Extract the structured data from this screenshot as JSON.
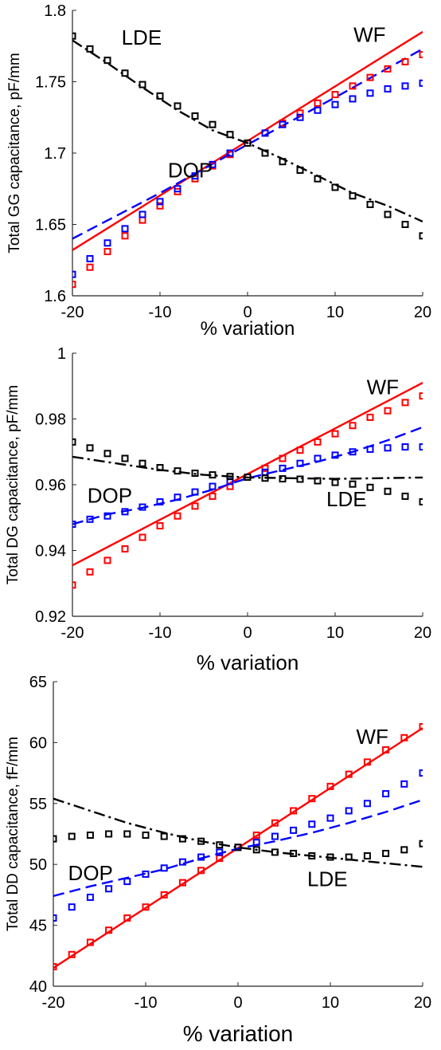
{
  "colors": {
    "WF": "#ff0000",
    "DOP": "#0000ff",
    "LDE": "#000000"
  },
  "chart_data": [
    {
      "type": "line",
      "ylabel": "Total GG capacitance, pF/mm",
      "xlabel": "% variation",
      "xlim": [
        -20,
        20
      ],
      "ylim": [
        1.6,
        1.8
      ],
      "xticks": [
        -20,
        -10,
        0,
        10,
        20
      ],
      "xtick_labels": [
        "-20",
        "-10",
        "0",
        "10",
        "20"
      ],
      "yticks": [
        1.6,
        1.65,
        1.7,
        1.75,
        1.8
      ],
      "ytick_labels": [
        "1.6",
        "1.65",
        "1.7",
        "1.75",
        "1.8"
      ],
      "grid": false,
      "annotations": [
        {
          "text": "LDE",
          "x": -14.4,
          "y": 1.776
        },
        {
          "text": "WF",
          "x": 12.1,
          "y": 1.778
        },
        {
          "text": "DOP",
          "x": -9.1,
          "y": 1.683
        }
      ],
      "series": [
        {
          "key": "WF",
          "style": "solid",
          "x": [
            -20,
            20
          ],
          "y": [
            1.632,
            1.785
          ]
        },
        {
          "key": "DOP",
          "style": "dashed",
          "x": [
            -20,
            -10,
            0,
            10,
            20
          ],
          "y": [
            1.64,
            1.672,
            1.706,
            1.739,
            1.773
          ]
        },
        {
          "key": "LDE",
          "style": "dashdot",
          "x": [
            -20,
            -16,
            -12,
            -8,
            -4,
            0,
            4,
            8,
            12,
            16,
            20
          ],
          "y": [
            1.779,
            1.763,
            1.746,
            1.73,
            1.716,
            1.707,
            1.696,
            1.684,
            1.672,
            1.663,
            1.652
          ]
        },
        {
          "key": "WF",
          "style": "markers",
          "x": [
            -20,
            -18,
            -16,
            -14,
            -12,
            -10,
            -8,
            -6,
            -4,
            -2,
            0,
            2,
            4,
            6,
            8,
            10,
            12,
            14,
            16,
            18,
            20
          ],
          "y": [
            1.608,
            1.62,
            1.631,
            1.642,
            1.653,
            1.663,
            1.673,
            1.682,
            1.691,
            1.699,
            1.707,
            1.714,
            1.721,
            1.728,
            1.735,
            1.741,
            1.747,
            1.753,
            1.759,
            1.764,
            1.769
          ]
        },
        {
          "key": "DOP",
          "style": "markers",
          "x": [
            -20,
            -18,
            -16,
            -14,
            -12,
            -10,
            -8,
            -6,
            -4,
            -2,
            0,
            2,
            4,
            6,
            8,
            10,
            12,
            14,
            16,
            18,
            20
          ],
          "y": [
            1.615,
            1.626,
            1.637,
            1.647,
            1.657,
            1.666,
            1.675,
            1.684,
            1.692,
            1.7,
            1.707,
            1.714,
            1.72,
            1.725,
            1.73,
            1.734,
            1.738,
            1.742,
            1.745,
            1.747,
            1.749
          ]
        },
        {
          "key": "LDE",
          "style": "markers",
          "x": [
            -20,
            -18,
            -16,
            -14,
            -12,
            -10,
            -8,
            -6,
            -4,
            -2,
            0,
            2,
            4,
            6,
            8,
            10,
            12,
            14,
            16,
            18,
            20
          ],
          "y": [
            1.782,
            1.773,
            1.765,
            1.756,
            1.748,
            1.74,
            1.733,
            1.726,
            1.72,
            1.713,
            1.707,
            1.7,
            1.694,
            1.688,
            1.682,
            1.676,
            1.67,
            1.664,
            1.657,
            1.65,
            1.642
          ]
        }
      ]
    },
    {
      "type": "line",
      "ylabel": "Total DG capacitance, pF/mm",
      "xlabel": "% variation",
      "xlim": [
        -20,
        20
      ],
      "ylim": [
        0.92,
        1.0
      ],
      "xticks": [
        -20,
        -10,
        0,
        10,
        20
      ],
      "xtick_labels": [
        "-20",
        "-10",
        "0",
        "10",
        "20"
      ],
      "yticks": [
        0.92,
        0.94,
        0.96,
        0.98,
        1.0
      ],
      "ytick_labels": [
        "0.92",
        "0.94",
        "0.96",
        "0.98",
        "1"
      ],
      "grid": false,
      "annotations": [
        {
          "text": "WF",
          "x": 13.6,
          "y": 0.9875
        },
        {
          "text": "DOP",
          "x": -18.3,
          "y": 0.9545
        },
        {
          "text": "LDE",
          "x": 9.0,
          "y": 0.9535
        }
      ],
      "series": [
        {
          "key": "WF",
          "style": "solid",
          "x": [
            -20,
            20
          ],
          "y": [
            0.9355,
            0.991
          ]
        },
        {
          "key": "DOP",
          "style": "dashed",
          "x": [
            -20,
            -16,
            -12,
            -8,
            -4,
            0,
            4,
            8,
            12,
            16,
            20
          ],
          "y": [
            0.948,
            0.951,
            0.953,
            0.9555,
            0.9585,
            0.962,
            0.9645,
            0.967,
            0.97,
            0.9735,
            0.9775
          ]
        },
        {
          "key": "LDE",
          "style": "dashdot",
          "x": [
            -20,
            -15,
            -10,
            -5,
            0,
            5,
            10,
            15,
            20
          ],
          "y": [
            0.9685,
            0.9665,
            0.9645,
            0.963,
            0.9622,
            0.962,
            0.9618,
            0.962,
            0.9622
          ]
        },
        {
          "key": "WF",
          "style": "markers",
          "x": [
            -20,
            -18,
            -16,
            -14,
            -12,
            -10,
            -8,
            -6,
            -4,
            -2,
            0,
            2,
            4,
            6,
            8,
            10,
            12,
            14,
            16,
            18,
            20
          ],
          "y": [
            0.9295,
            0.9335,
            0.937,
            0.9405,
            0.944,
            0.9475,
            0.9505,
            0.9535,
            0.9565,
            0.9595,
            0.9623,
            0.965,
            0.968,
            0.9705,
            0.973,
            0.9755,
            0.978,
            0.9805,
            0.9825,
            0.985,
            0.987
          ]
        },
        {
          "key": "DOP",
          "style": "markers",
          "x": [
            -20,
            -18,
            -16,
            -14,
            -12,
            -10,
            -8,
            -6,
            -4,
            -2,
            0,
            2,
            4,
            6,
            8,
            10,
            12,
            14,
            16,
            18,
            20
          ],
          "y": [
            0.948,
            0.9495,
            0.9505,
            0.9518,
            0.9532,
            0.9548,
            0.9562,
            0.9578,
            0.9595,
            0.961,
            0.9623,
            0.9638,
            0.965,
            0.9665,
            0.968,
            0.969,
            0.97,
            0.9708,
            0.9712,
            0.9715,
            0.9715
          ]
        },
        {
          "key": "LDE",
          "style": "markers",
          "x": [
            -20,
            -18,
            -16,
            -14,
            -12,
            -10,
            -8,
            -6,
            -4,
            -2,
            0,
            2,
            4,
            6,
            8,
            10,
            12,
            14,
            16,
            18,
            20
          ],
          "y": [
            0.973,
            0.9712,
            0.9695,
            0.968,
            0.9665,
            0.9652,
            0.9642,
            0.9635,
            0.963,
            0.9625,
            0.9623,
            0.962,
            0.9618,
            0.9617,
            0.9612,
            0.9607,
            0.9602,
            0.9592,
            0.958,
            0.9565,
            0.9548
          ]
        }
      ]
    },
    {
      "type": "line",
      "ylabel": "Total DD capacitance, fF/mm",
      "xlabel": "% variation",
      "xlim": [
        -20,
        20
      ],
      "ylim": [
        40,
        65
      ],
      "xticks": [
        -20,
        -10,
        0,
        10,
        20
      ],
      "xtick_labels": [
        "-20",
        "-10",
        "0",
        "10",
        "20"
      ],
      "yticks": [
        40,
        45,
        50,
        55,
        60,
        65
      ],
      "ytick_labels": [
        "40",
        "45",
        "50",
        "55",
        "60",
        "65"
      ],
      "grid": false,
      "annotations": [
        {
          "text": "WF",
          "x": 12.8,
          "y": 59.9
        },
        {
          "text": "DOP",
          "x": -18.4,
          "y": 48.7
        },
        {
          "text": "LDE",
          "x": 7.5,
          "y": 48.2
        }
      ],
      "series": [
        {
          "key": "WF",
          "style": "solid",
          "x": [
            -20,
            20
          ],
          "y": [
            41.5,
            61.2
          ]
        },
        {
          "key": "DOP",
          "style": "dashed",
          "x": [
            -20,
            -16,
            -12,
            -8,
            -4,
            0,
            4,
            8,
            12,
            16,
            20
          ],
          "y": [
            47.4,
            48.2,
            48.9,
            49.6,
            50.5,
            51.3,
            51.9,
            52.6,
            53.4,
            54.3,
            55.3
          ]
        },
        {
          "key": "LDE",
          "style": "dashdot",
          "x": [
            -20,
            -16,
            -12,
            -8,
            -4,
            0,
            4,
            8,
            12,
            16,
            20
          ],
          "y": [
            55.4,
            54.4,
            53.4,
            52.6,
            51.9,
            51.4,
            51.0,
            50.7,
            50.4,
            50.1,
            49.8
          ]
        },
        {
          "key": "WF",
          "style": "markers",
          "x": [
            -20,
            -18,
            -16,
            -14,
            -12,
            -10,
            -8,
            -6,
            -4,
            -2,
            0,
            2,
            4,
            6,
            8,
            10,
            12,
            14,
            16,
            18,
            20
          ],
          "y": [
            41.6,
            42.6,
            43.6,
            44.6,
            45.6,
            46.5,
            47.5,
            48.5,
            49.5,
            50.5,
            51.4,
            52.4,
            53.4,
            54.4,
            55.4,
            56.4,
            57.4,
            58.4,
            59.4,
            60.4,
            61.3
          ]
        },
        {
          "key": "DOP",
          "style": "markers",
          "x": [
            -20,
            -18,
            -16,
            -14,
            -12,
            -10,
            -8,
            -6,
            -4,
            -2,
            0,
            2,
            4,
            6,
            8,
            10,
            12,
            14,
            16,
            18,
            20
          ],
          "y": [
            45.6,
            46.5,
            47.3,
            48.0,
            48.6,
            49.2,
            49.7,
            50.2,
            50.6,
            51.0,
            51.4,
            51.8,
            52.3,
            52.8,
            53.3,
            53.8,
            54.4,
            55.0,
            55.8,
            56.6,
            57.5
          ]
        },
        {
          "key": "LDE",
          "style": "markers",
          "x": [
            -20,
            -18,
            -16,
            -14,
            -12,
            -10,
            -8,
            -6,
            -4,
            -2,
            0,
            2,
            4,
            6,
            8,
            10,
            12,
            14,
            16,
            18,
            20
          ],
          "y": [
            52.1,
            52.3,
            52.4,
            52.5,
            52.5,
            52.4,
            52.3,
            52.1,
            51.9,
            51.6,
            51.4,
            51.2,
            51.0,
            50.9,
            50.7,
            50.6,
            50.6,
            50.7,
            50.9,
            51.2,
            51.7
          ]
        }
      ]
    }
  ]
}
